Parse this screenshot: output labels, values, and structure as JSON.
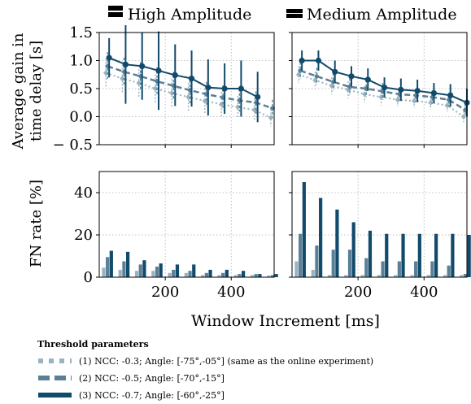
{
  "column_titles": [
    "High Amplitude",
    "Medium Amplitude"
  ],
  "ylabel_top": [
    "Average gain in",
    "time delay [s]"
  ],
  "ylabel_bottom": "FN rate [%]",
  "xlabel": "Window Increment [ms]",
  "legend": {
    "title": "Threshold parameters",
    "entries": [
      "(1) NCC: -0.3; Angle: [-75°,-05°] (same as the online experiment)",
      "(2) NCC: -0.5; Angle: [-70°,-15°]",
      "(3) NCC: -0.7; Angle: [-60°,-25°]"
    ]
  },
  "colors": {
    "series1": "#9ab3c0",
    "series2": "#5a7f96",
    "series3": "#114a6b",
    "grid": "#b0b0b0"
  },
  "chart_data": [
    {
      "type": "line",
      "panel": "top-left",
      "title": "High Amplitude",
      "ylabel": "Average gain in time delay [s]",
      "xlim": [
        0,
        530
      ],
      "ylim": [
        -0.5,
        1.5
      ],
      "yticks": [
        -0.5,
        0.0,
        0.5,
        1.0,
        1.5
      ],
      "ytick_labels": [
        "− 0.5",
        "0.0",
        "0.5",
        "1.0",
        "1.5"
      ],
      "grid": true,
      "x": [
        25,
        75,
        125,
        175,
        225,
        275,
        325,
        375,
        425,
        475,
        525
      ],
      "series": [
        {
          "values": [
            0.78,
            0.68,
            0.6,
            0.5,
            0.42,
            0.35,
            0.28,
            0.22,
            0.17,
            0.12,
            -0.02
          ],
          "err": [
            0.25,
            0.25,
            0.25,
            0.25,
            0.25,
            0.25,
            0.22,
            0.22,
            0.2,
            0.2,
            0.15
          ]
        },
        {
          "values": [
            0.9,
            0.8,
            0.72,
            0.63,
            0.55,
            0.47,
            0.4,
            0.34,
            0.29,
            0.25,
            0.15
          ],
          "err": [
            0.25,
            0.25,
            0.25,
            0.25,
            0.25,
            0.25,
            0.22,
            0.22,
            0.2,
            0.2,
            0.15
          ]
        },
        {
          "values": [
            1.05,
            0.93,
            0.9,
            0.82,
            0.74,
            0.68,
            0.52,
            0.5,
            0.5,
            0.35,
            null
          ],
          "err": [
            0.35,
            0.7,
            0.6,
            0.7,
            0.55,
            0.5,
            0.5,
            0.45,
            0.5,
            0.45,
            0
          ]
        }
      ]
    },
    {
      "type": "line",
      "panel": "top-right",
      "title": "Medium Amplitude",
      "xlim": [
        0,
        530
      ],
      "ylim": [
        -0.5,
        1.5
      ],
      "grid": true,
      "x": [
        25,
        75,
        125,
        175,
        225,
        275,
        325,
        375,
        425,
        475,
        525
      ],
      "series": [
        {
          "values": [
            0.75,
            0.65,
            0.55,
            0.48,
            0.4,
            0.35,
            0.3,
            0.28,
            0.25,
            0.2,
            0.0
          ],
          "err": [
            0.15,
            0.15,
            0.15,
            0.15,
            0.15,
            0.15,
            0.12,
            0.12,
            0.12,
            0.12,
            0.1
          ]
        },
        {
          "values": [
            0.82,
            0.72,
            0.62,
            0.53,
            0.5,
            0.45,
            0.4,
            0.38,
            0.35,
            0.3,
            0.12
          ],
          "err": [
            0.15,
            0.15,
            0.15,
            0.15,
            0.15,
            0.15,
            0.12,
            0.12,
            0.12,
            0.12,
            0.1
          ]
        },
        {
          "values": [
            1.0,
            1.0,
            0.8,
            0.72,
            0.66,
            0.52,
            0.48,
            0.46,
            0.42,
            0.38,
            0.25
          ],
          "err": [
            0.18,
            0.18,
            0.2,
            0.18,
            0.2,
            0.18,
            0.2,
            0.2,
            0.18,
            0.2,
            0.25
          ]
        }
      ]
    },
    {
      "type": "bar",
      "panel": "bottom-left",
      "ylabel": "FN rate [%]",
      "xlabel": "Window Increment [ms]",
      "xlim": [
        0,
        530
      ],
      "ylim": [
        0,
        50
      ],
      "yticks": [
        0,
        20,
        40
      ],
      "xticks": [
        200,
        400
      ],
      "grid": true,
      "x": [
        25,
        75,
        125,
        175,
        225,
        275,
        325,
        375,
        425,
        475,
        525
      ],
      "series": [
        {
          "values": [
            4.5,
            3.5,
            3,
            3,
            2,
            2,
            1,
            1,
            1,
            1,
            0.8
          ]
        },
        {
          "values": [
            9.5,
            7.5,
            6,
            5,
            3.5,
            3,
            2,
            2,
            1.5,
            1.5,
            1
          ]
        },
        {
          "values": [
            12.5,
            12,
            8,
            6.5,
            6,
            6,
            3.5,
            3.5,
            3,
            1.5,
            1.5
          ]
        }
      ]
    },
    {
      "type": "bar",
      "panel": "bottom-right",
      "xlim": [
        0,
        530
      ],
      "ylim": [
        0,
        50
      ],
      "xticks": [
        200,
        400
      ],
      "grid": true,
      "x": [
        25,
        75,
        125,
        175,
        225,
        275,
        325,
        375,
        425,
        475,
        525
      ],
      "series": [
        {
          "values": [
            7.5,
            3.5,
            1,
            1,
            1,
            1,
            1,
            1,
            1,
            1,
            1
          ]
        },
        {
          "values": [
            20.5,
            15,
            13,
            13,
            9,
            7.5,
            7.5,
            7.5,
            7.5,
            5.5,
            1.5
          ]
        },
        {
          "values": [
            45,
            37.5,
            32,
            26,
            22,
            20.5,
            20.5,
            20.5,
            20.5,
            20.5,
            20
          ]
        }
      ]
    }
  ]
}
